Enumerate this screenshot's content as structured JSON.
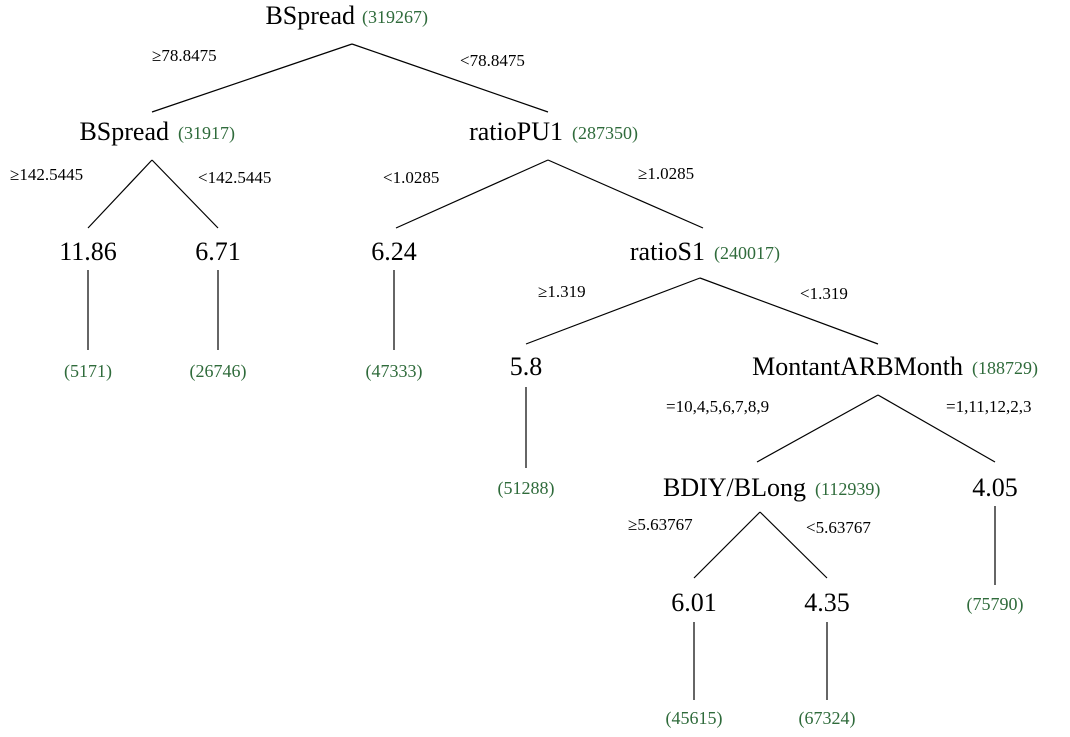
{
  "nodes": [
    {
      "label": "BSpread",
      "count": "(319267)"
    },
    {
      "label": "BSpread",
      "count": "(31917)"
    },
    {
      "label": "ratioPU1",
      "count": "(287350)"
    },
    {
      "label": "11.86",
      "count": "(5171)"
    },
    {
      "label": "6.71",
      "count": "(26746)"
    },
    {
      "label": "6.24",
      "count": "(47333)"
    },
    {
      "label": "ratioS1",
      "count": "(240017)"
    },
    {
      "label": "5.8",
      "count": "(51288)"
    },
    {
      "label": "MontantARBMonth",
      "count": "(188729)"
    },
    {
      "label": "BDIY/BLong",
      "count": "(112939)"
    },
    {
      "label": "4.05",
      "count": "(75790)"
    },
    {
      "label": "6.01",
      "count": "(45615)"
    },
    {
      "label": "4.35",
      "count": "(67324)"
    }
  ],
  "edges": [
    {
      "label": "≥78.8475"
    },
    {
      "label": "<78.8475"
    },
    {
      "label": "≥142.5445"
    },
    {
      "label": "<142.5445"
    },
    {
      "label": "<1.0285"
    },
    {
      "label": "≥1.0285"
    },
    {
      "label": "≥1.319"
    },
    {
      "label": "<1.319"
    },
    {
      "label": "=10,4,5,6,7,8,9"
    },
    {
      "label": "=1,11,12,2,3"
    },
    {
      "label": "≥5.63767"
    },
    {
      "label": "<5.63767"
    }
  ]
}
